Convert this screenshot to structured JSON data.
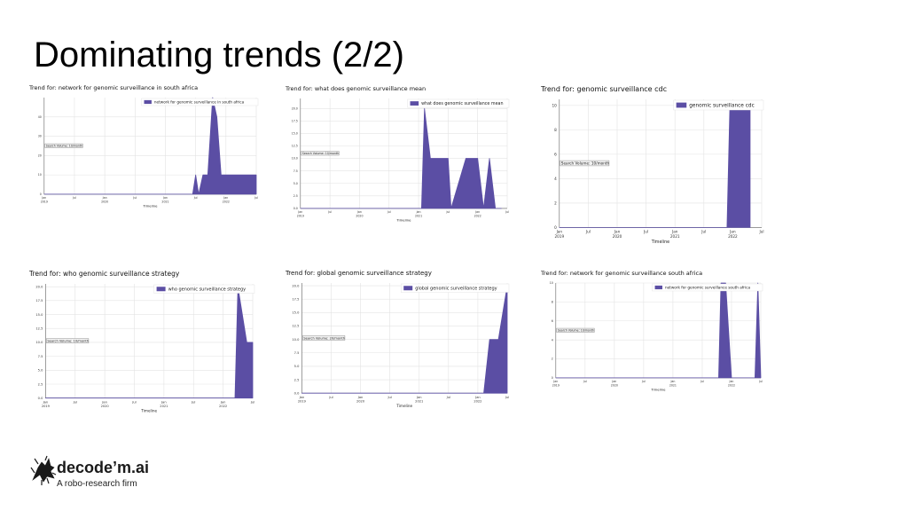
{
  "slide": {
    "title": "Dominating trends (2/2)"
  },
  "brand": {
    "name": "decode’m.ai",
    "tagline": "A robo-research firm",
    "icon": "horse-logo-icon"
  },
  "colors": {
    "series": "#5b4ea4",
    "grid": "#e3e3e3",
    "axis": "#666666"
  },
  "chart_data": [
    {
      "type": "area",
      "title": "Trend for: network for genomic surveillance in south africa",
      "xlabel": "Timeline",
      "ylabel": "",
      "annotation": "Search Volume: 10/month",
      "legend_position": "top-right",
      "grid": true,
      "xlim": [
        2019.0,
        2022.5
      ],
      "ylim": [
        0,
        50
      ],
      "yticks": [
        0,
        10,
        20,
        30,
        40
      ],
      "xticks": [
        {
          "x": 2019.0,
          "label": [
            "Jan",
            "2019"
          ]
        },
        {
          "x": 2019.5,
          "label": [
            "Jul",
            ""
          ]
        },
        {
          "x": 2020.0,
          "label": [
            "Jan",
            "2020"
          ]
        },
        {
          "x": 2020.5,
          "label": [
            "Jul",
            ""
          ]
        },
        {
          "x": 2021.0,
          "label": [
            "Jan",
            "2021"
          ]
        },
        {
          "x": 2021.5,
          "label": [
            "Jul",
            ""
          ]
        },
        {
          "x": 2022.0,
          "label": [
            "Jan",
            "2022"
          ]
        },
        {
          "x": 2022.5,
          "label": [
            "Jul",
            ""
          ]
        }
      ],
      "series": [
        {
          "name": "network for genomic surveillance in south africa",
          "x": [
            2019.0,
            2021.45,
            2021.5,
            2021.55,
            2021.62,
            2021.7,
            2021.78,
            2021.85,
            2021.92,
            2022.0,
            2022.5
          ],
          "y": [
            0,
            0,
            10,
            0,
            10,
            10,
            50,
            40,
            10,
            10,
            10
          ]
        }
      ]
    },
    {
      "type": "area",
      "title": "Trend for: what does genomic surveillance mean",
      "xlabel": "Timeline",
      "ylabel": "",
      "annotation": "Search Volume: 10/month",
      "legend_position": "top-right",
      "grid": true,
      "xlim": [
        2019.0,
        2022.5
      ],
      "ylim": [
        0,
        22
      ],
      "yticks": [
        0,
        2.5,
        5,
        7.5,
        10,
        12.5,
        15,
        17.5,
        20
      ],
      "ytick_labels": [
        "0.0",
        "2.5",
        "5.0",
        "7.5",
        "10.0",
        "12.5",
        "15.0",
        "17.5",
        "20.0"
      ],
      "xticks": [
        {
          "x": 2019.0,
          "label": [
            "Jan",
            "2019"
          ]
        },
        {
          "x": 2019.5,
          "label": [
            "Jul",
            ""
          ]
        },
        {
          "x": 2020.0,
          "label": [
            "Jan",
            "2020"
          ]
        },
        {
          "x": 2020.5,
          "label": [
            "Jul",
            ""
          ]
        },
        {
          "x": 2021.0,
          "label": [
            "Jan",
            "2021"
          ]
        },
        {
          "x": 2021.5,
          "label": [
            "Jul",
            ""
          ]
        },
        {
          "x": 2022.0,
          "label": [
            "Jan",
            "2022"
          ]
        },
        {
          "x": 2022.5,
          "label": [
            "Jul",
            ""
          ]
        }
      ],
      "series": [
        {
          "name": "what does genomic surveillance mean",
          "x": [
            2019.0,
            2021.05,
            2021.1,
            2021.2,
            2021.3,
            2021.5,
            2021.55,
            2021.8,
            2022.0,
            2022.1,
            2022.2,
            2022.3,
            2022.4
          ],
          "y": [
            0,
            0,
            20,
            10,
            10,
            10,
            0,
            10,
            10,
            0,
            10,
            0,
            0
          ]
        }
      ]
    },
    {
      "type": "area",
      "title": "Trend for: genomic surveillance cdc",
      "xlabel": "Timeline",
      "ylabel": "",
      "annotation": "Search Volume: 10/month",
      "legend_position": "top-right",
      "grid": true,
      "xlim": [
        2019.0,
        2022.5
      ],
      "ylim": [
        0,
        10.5
      ],
      "yticks": [
        0,
        2,
        4,
        6,
        8,
        10
      ],
      "xticks": [
        {
          "x": 2019.0,
          "label": [
            "Jan",
            "2019"
          ]
        },
        {
          "x": 2019.5,
          "label": [
            "Jul",
            ""
          ]
        },
        {
          "x": 2020.0,
          "label": [
            "Jan",
            "2020"
          ]
        },
        {
          "x": 2020.5,
          "label": [
            "Jul",
            ""
          ]
        },
        {
          "x": 2021.0,
          "label": [
            "Jan",
            "2021"
          ]
        },
        {
          "x": 2021.5,
          "label": [
            "Jul",
            ""
          ]
        },
        {
          "x": 2022.0,
          "label": [
            "Jan",
            "2022"
          ]
        },
        {
          "x": 2022.5,
          "label": [
            "Jul",
            ""
          ]
        }
      ],
      "series": [
        {
          "name": "genomic surveillance cdc",
          "x": [
            2019.0,
            2021.9,
            2021.95,
            2022.3
          ],
          "y": [
            0,
            0,
            10,
            10
          ]
        }
      ]
    },
    {
      "type": "area",
      "title": "Trend for: who genomic surveillance strategy",
      "xlabel": "Timeline",
      "ylabel": "",
      "annotation": "Search Volume: 10/month",
      "legend_position": "top-right",
      "grid": true,
      "xlim": [
        2019.0,
        2022.5
      ],
      "ylim": [
        0,
        20.5
      ],
      "yticks": [
        0,
        2.5,
        5,
        7.5,
        10,
        12.5,
        15,
        17.5,
        20
      ],
      "ytick_labels": [
        "0.0",
        "2.5",
        "5.0",
        "7.5",
        "10.0",
        "12.5",
        "15.0",
        "17.5",
        "20.0"
      ],
      "xticks": [
        {
          "x": 2019.0,
          "label": [
            "Jan",
            "2019"
          ]
        },
        {
          "x": 2019.5,
          "label": [
            "Jul",
            ""
          ]
        },
        {
          "x": 2020.0,
          "label": [
            "Jan",
            "2020"
          ]
        },
        {
          "x": 2020.5,
          "label": [
            "Jul",
            ""
          ]
        },
        {
          "x": 2021.0,
          "label": [
            "Jan",
            "2021"
          ]
        },
        {
          "x": 2021.5,
          "label": [
            "Jul",
            ""
          ]
        },
        {
          "x": 2022.0,
          "label": [
            "Jan",
            "2022"
          ]
        },
        {
          "x": 2022.5,
          "label": [
            "Jul",
            ""
          ]
        }
      ],
      "series": [
        {
          "name": "who genomic surveillance strategy",
          "x": [
            2019.0,
            2022.2,
            2022.25,
            2022.4,
            2022.45,
            2022.5
          ],
          "y": [
            0,
            0,
            20,
            10,
            10,
            10
          ]
        }
      ]
    },
    {
      "type": "area",
      "title": "Trend for: global genomic surveillance strategy",
      "xlabel": "Timeline",
      "ylabel": "",
      "annotation": "Search Volume: 20/month",
      "legend_position": "top-right",
      "grid": true,
      "xlim": [
        2019.0,
        2022.5
      ],
      "ylim": [
        0,
        20.5
      ],
      "yticks": [
        0,
        2.5,
        5,
        7.5,
        10,
        12.5,
        15,
        17.5,
        20
      ],
      "ytick_labels": [
        "0.0",
        "2.5",
        "5.0",
        "7.5",
        "10.0",
        "12.5",
        "15.0",
        "17.5",
        "20.0"
      ],
      "xticks": [
        {
          "x": 2019.0,
          "label": [
            "Jan",
            "2019"
          ]
        },
        {
          "x": 2019.5,
          "label": [
            "Jul",
            ""
          ]
        },
        {
          "x": 2020.0,
          "label": [
            "Jan",
            "2020"
          ]
        },
        {
          "x": 2020.5,
          "label": [
            "Jul",
            ""
          ]
        },
        {
          "x": 2021.0,
          "label": [
            "Jan",
            "2021"
          ]
        },
        {
          "x": 2021.5,
          "label": [
            "Jul",
            ""
          ]
        },
        {
          "x": 2022.0,
          "label": [
            "Jan",
            "2022"
          ]
        },
        {
          "x": 2022.5,
          "label": [
            "Jul",
            ""
          ]
        }
      ],
      "series": [
        {
          "name": "global genomic surveillance strategy",
          "x": [
            2019.0,
            2022.1,
            2022.2,
            2022.35,
            2022.5
          ],
          "y": [
            0,
            0,
            10,
            10,
            20
          ]
        }
      ]
    },
    {
      "type": "area",
      "title": "Trend for: network for genomic surveillance south africa",
      "xlabel": "Timeline",
      "ylabel": "",
      "annotation": "Search Volume: 10/month",
      "legend_position": "top-right",
      "grid": true,
      "xlim": [
        2019.0,
        2022.5
      ],
      "ylim": [
        0,
        10
      ],
      "yticks": [
        0,
        2,
        4,
        6,
        8,
        10
      ],
      "xticks": [
        {
          "x": 2019.0,
          "label": [
            "Jan",
            "2019"
          ]
        },
        {
          "x": 2019.5,
          "label": [
            "Jul",
            ""
          ]
        },
        {
          "x": 2020.0,
          "label": [
            "Jan",
            "2020"
          ]
        },
        {
          "x": 2020.5,
          "label": [
            "Jul",
            ""
          ]
        },
        {
          "x": 2021.0,
          "label": [
            "Jan",
            "2021"
          ]
        },
        {
          "x": 2021.5,
          "label": [
            "Jul",
            ""
          ]
        },
        {
          "x": 2022.0,
          "label": [
            "Jan",
            "2022"
          ]
        },
        {
          "x": 2022.5,
          "label": [
            "Jul",
            ""
          ]
        }
      ],
      "series": [
        {
          "name": "network for genomic surveillance south africa",
          "x": [
            2019.0,
            2021.78,
            2021.82,
            2021.9,
            2022.0,
            2022.4,
            2022.45,
            2022.5
          ],
          "y": [
            0,
            0,
            10,
            10,
            0,
            0,
            10,
            0
          ]
        }
      ]
    }
  ]
}
